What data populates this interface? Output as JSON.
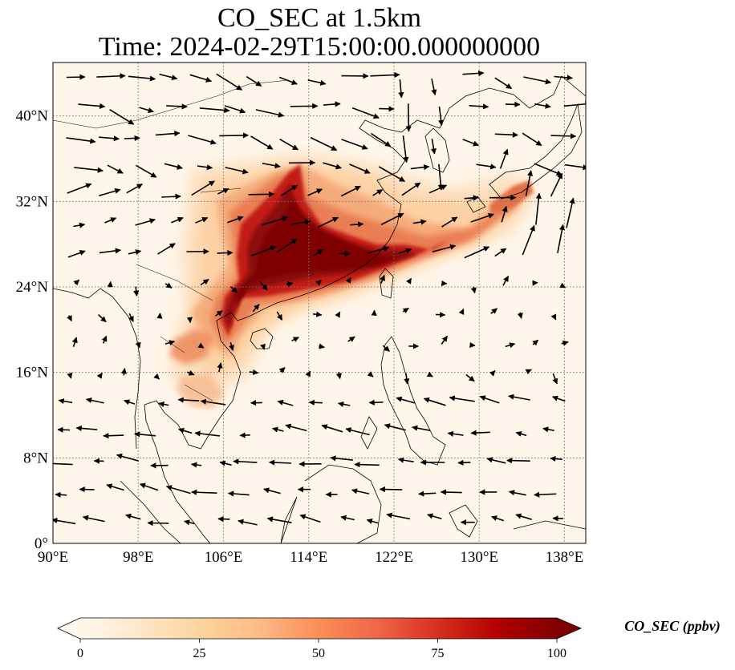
{
  "title": {
    "line1": "CO_SEC at 1.5km",
    "line2": "Time: 2024-02-29T15:00:00.000000000"
  },
  "map": {
    "lon_range": [
      90,
      140
    ],
    "lat_range": [
      0,
      45
    ],
    "lon_ticks": [
      {
        "value": 90,
        "label": "90°E"
      },
      {
        "value": 98,
        "label": "98°E"
      },
      {
        "value": 106,
        "label": "106°E"
      },
      {
        "value": 114,
        "label": "114°E"
      },
      {
        "value": 122,
        "label": "122°E"
      },
      {
        "value": 130,
        "label": "130°E"
      },
      {
        "value": 138,
        "label": "138°E"
      }
    ],
    "lat_ticks": [
      {
        "value": 0,
        "label": "0°"
      },
      {
        "value": 8,
        "label": "8°N"
      },
      {
        "value": 16,
        "label": "16°N"
      },
      {
        "value": 24,
        "label": "24°N"
      },
      {
        "value": 32,
        "label": "32°N"
      },
      {
        "value": 40,
        "label": "40°N"
      }
    ],
    "gridlines": true,
    "colors": {
      "background": "#fff6e9",
      "grid": "#777777",
      "coast": "#000000",
      "vector": "#000000"
    }
  },
  "colorbar": {
    "title": "CO_SEC (ppbv)",
    "min": 0,
    "max": 100,
    "extend": "both",
    "cmap": "OrRd",
    "ticks": [
      {
        "value": 0,
        "label": "0"
      },
      {
        "value": 25,
        "label": "25"
      },
      {
        "value": 50,
        "label": "50"
      },
      {
        "value": 75,
        "label": "75"
      },
      {
        "value": 100,
        "label": "100"
      }
    ],
    "stops": [
      "#fff7ec",
      "#fee8c8",
      "#fdd49e",
      "#fdbb84",
      "#fc8d59",
      "#ef6548",
      "#d7301f",
      "#b30000",
      "#7f0000"
    ]
  }
}
